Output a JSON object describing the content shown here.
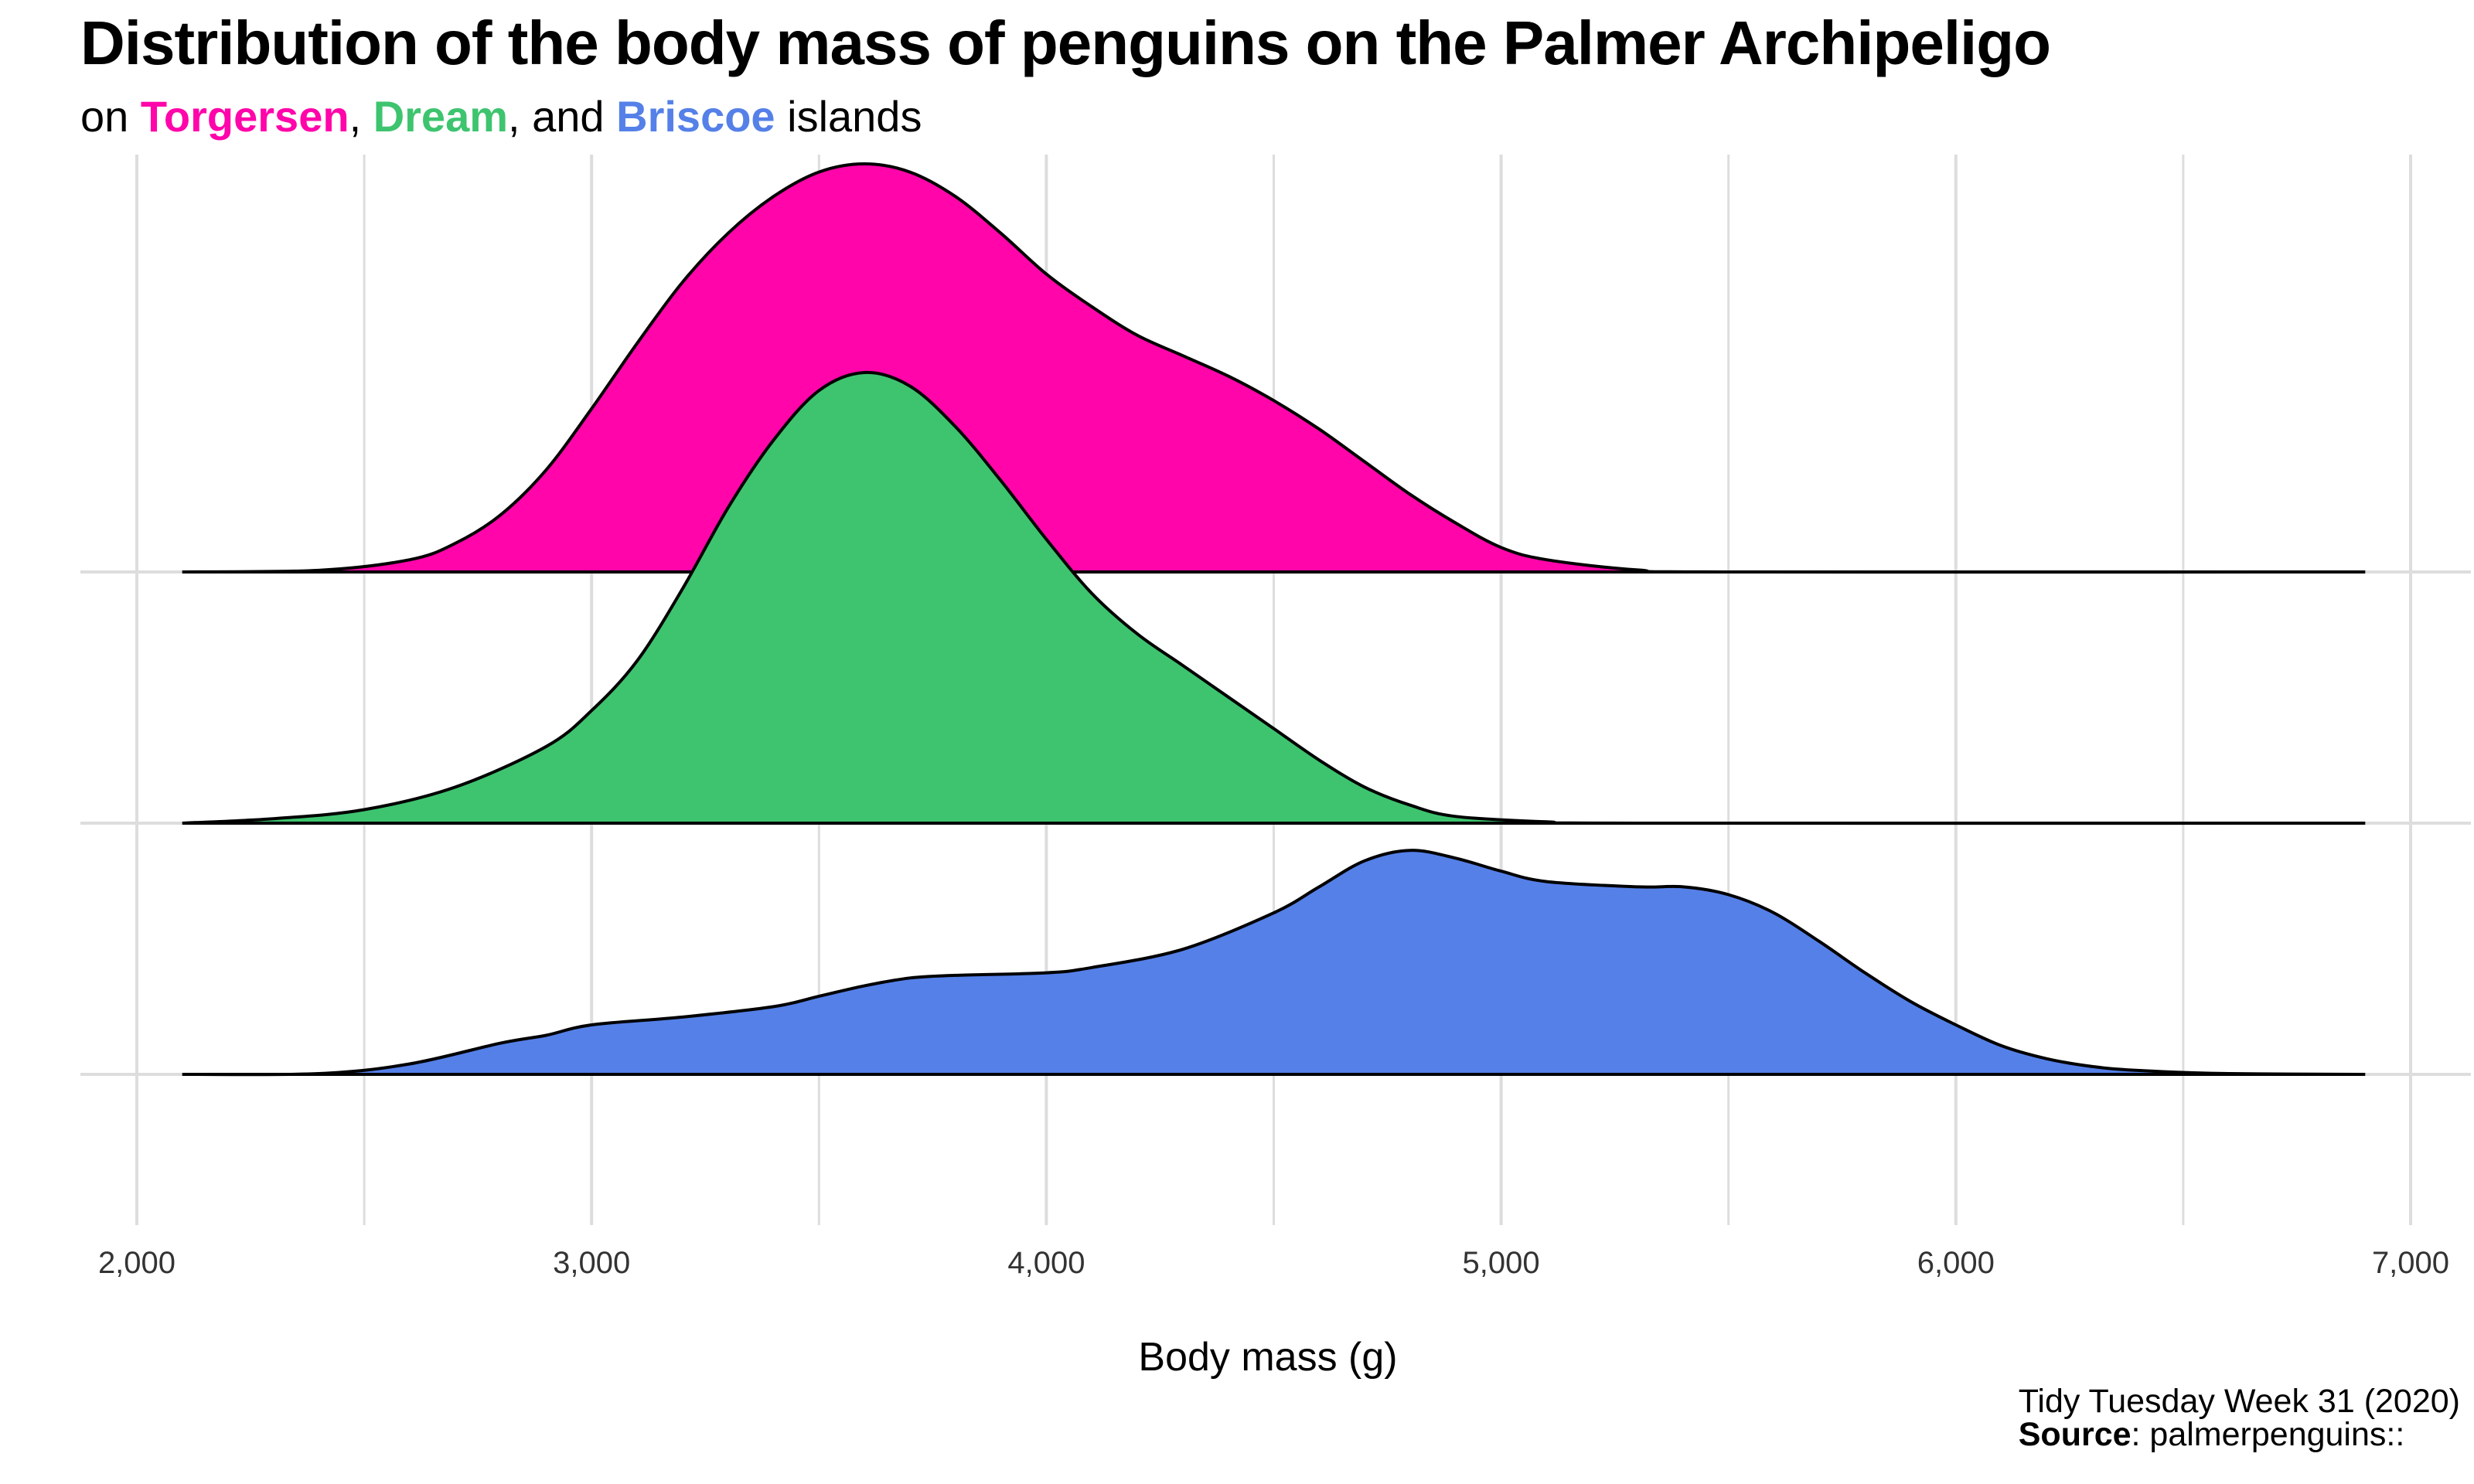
{
  "chart_data": {
    "type": "area",
    "subtype": "ridgeline-density",
    "title": "Distribution of the body mass of penguins on the Palmer Archipeligo",
    "subtitle": {
      "prefix": "on ",
      "sep1": ", ",
      "sep2": ", and ",
      "suffix": " islands",
      "islands": [
        "Torgersen",
        "Dream",
        "Briscoe"
      ]
    },
    "xlabel": "Body mass (g)",
    "ylabel": "",
    "xlim": [
      2000,
      7000
    ],
    "x_range_drawn": [
      2100,
      6900
    ],
    "x_ticks": [
      2000,
      3000,
      4000,
      5000,
      6000,
      7000
    ],
    "x_tick_labels": [
      "2,000",
      "3,000",
      "4,000",
      "5,000",
      "6,000",
      "7,000"
    ],
    "grid": true,
    "legend": "none (colored island names in subtitle)",
    "series": [
      {
        "name": "Torgersen",
        "color": "#FF05AA",
        "density_profile": [
          [
            2100,
            0.0
          ],
          [
            2400,
            0.004
          ],
          [
            2600,
            0.03
          ],
          [
            2700,
            0.07
          ],
          [
            2800,
            0.14
          ],
          [
            2900,
            0.25
          ],
          [
            3000,
            0.4
          ],
          [
            3100,
            0.56
          ],
          [
            3200,
            0.71
          ],
          [
            3300,
            0.83
          ],
          [
            3400,
            0.92
          ],
          [
            3500,
            0.98
          ],
          [
            3600,
            1.0
          ],
          [
            3700,
            0.98
          ],
          [
            3800,
            0.92
          ],
          [
            3900,
            0.83
          ],
          [
            4000,
            0.73
          ],
          [
            4100,
            0.65
          ],
          [
            4200,
            0.58
          ],
          [
            4300,
            0.53
          ],
          [
            4400,
            0.48
          ],
          [
            4500,
            0.42
          ],
          [
            4600,
            0.35
          ],
          [
            4700,
            0.27
          ],
          [
            4800,
            0.19
          ],
          [
            4900,
            0.12
          ],
          [
            5000,
            0.06
          ],
          [
            5100,
            0.03
          ],
          [
            5300,
            0.005
          ],
          [
            5500,
            0.0
          ],
          [
            6900,
            0.0
          ]
        ]
      },
      {
        "name": "Dream",
        "color": "#3EC46F",
        "density_profile": [
          [
            2100,
            0.0
          ],
          [
            2300,
            0.01
          ],
          [
            2500,
            0.03
          ],
          [
            2700,
            0.08
          ],
          [
            2900,
            0.17
          ],
          [
            3000,
            0.25
          ],
          [
            3100,
            0.36
          ],
          [
            3200,
            0.52
          ],
          [
            3300,
            0.7
          ],
          [
            3400,
            0.85
          ],
          [
            3500,
            0.96
          ],
          [
            3600,
            1.0
          ],
          [
            3700,
            0.97
          ],
          [
            3800,
            0.88
          ],
          [
            3900,
            0.76
          ],
          [
            4000,
            0.63
          ],
          [
            4100,
            0.51
          ],
          [
            4200,
            0.42
          ],
          [
            4300,
            0.35
          ],
          [
            4400,
            0.28
          ],
          [
            4500,
            0.21
          ],
          [
            4600,
            0.14
          ],
          [
            4700,
            0.08
          ],
          [
            4800,
            0.04
          ],
          [
            4900,
            0.015
          ],
          [
            5100,
            0.003
          ],
          [
            5300,
            0.0
          ],
          [
            6900,
            0.0
          ]
        ]
      },
      {
        "name": "Briscoe",
        "color": "#5580E8",
        "density_profile": [
          [
            2100,
            0.0
          ],
          [
            2400,
            0.003
          ],
          [
            2600,
            0.04
          ],
          [
            2800,
            0.12
          ],
          [
            2900,
            0.15
          ],
          [
            3000,
            0.19
          ],
          [
            3200,
            0.22
          ],
          [
            3400,
            0.26
          ],
          [
            3500,
            0.3
          ],
          [
            3600,
            0.34
          ],
          [
            3700,
            0.37
          ],
          [
            3800,
            0.38
          ],
          [
            4000,
            0.39
          ],
          [
            4100,
            0.41
          ],
          [
            4300,
            0.48
          ],
          [
            4500,
            0.62
          ],
          [
            4600,
            0.72
          ],
          [
            4700,
            0.82
          ],
          [
            4800,
            0.86
          ],
          [
            4900,
            0.83
          ],
          [
            5000,
            0.78
          ],
          [
            5100,
            0.74
          ],
          [
            5300,
            0.72
          ],
          [
            5400,
            0.72
          ],
          [
            5500,
            0.69
          ],
          [
            5600,
            0.62
          ],
          [
            5700,
            0.51
          ],
          [
            5800,
            0.39
          ],
          [
            5900,
            0.28
          ],
          [
            6000,
            0.19
          ],
          [
            6100,
            0.11
          ],
          [
            6200,
            0.06
          ],
          [
            6300,
            0.03
          ],
          [
            6400,
            0.015
          ],
          [
            6600,
            0.003
          ],
          [
            6900,
            0.0
          ]
        ]
      }
    ],
    "caption": {
      "line1": "Tidy Tuesday Week 31 (2020)",
      "source_label": "Source",
      "source_text": ": palmerpenguins::"
    }
  }
}
